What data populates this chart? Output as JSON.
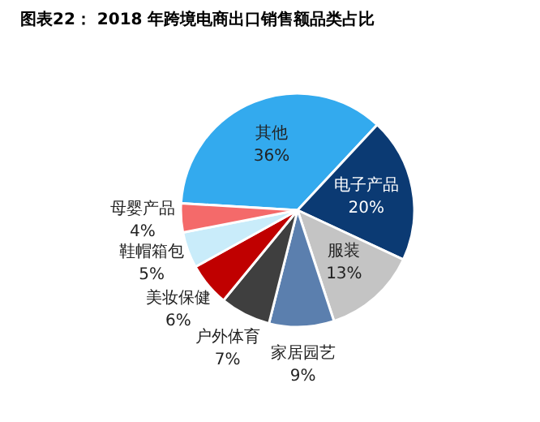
{
  "chart_data": {
    "type": "pie",
    "title": "图表22：  2018 年跨境电商出口销售额品类占比",
    "categories": [
      "其他",
      "电子产品",
      "服装",
      "家居园艺",
      "户外体育",
      "美妆保健",
      "鞋帽箱包",
      "母婴产品"
    ],
    "values": [
      36,
      20,
      13,
      9,
      7,
      6,
      5,
      4
    ],
    "value_labels": [
      "36%",
      "20%",
      "13%",
      "9%",
      "7%",
      "6%",
      "5%",
      "4%"
    ],
    "colors": [
      "#33aaee",
      "#0b3a73",
      "#c4c4c4",
      "#5b7fae",
      "#3f3f3f",
      "#c00000",
      "#c9ecfa",
      "#f46a6a"
    ]
  }
}
